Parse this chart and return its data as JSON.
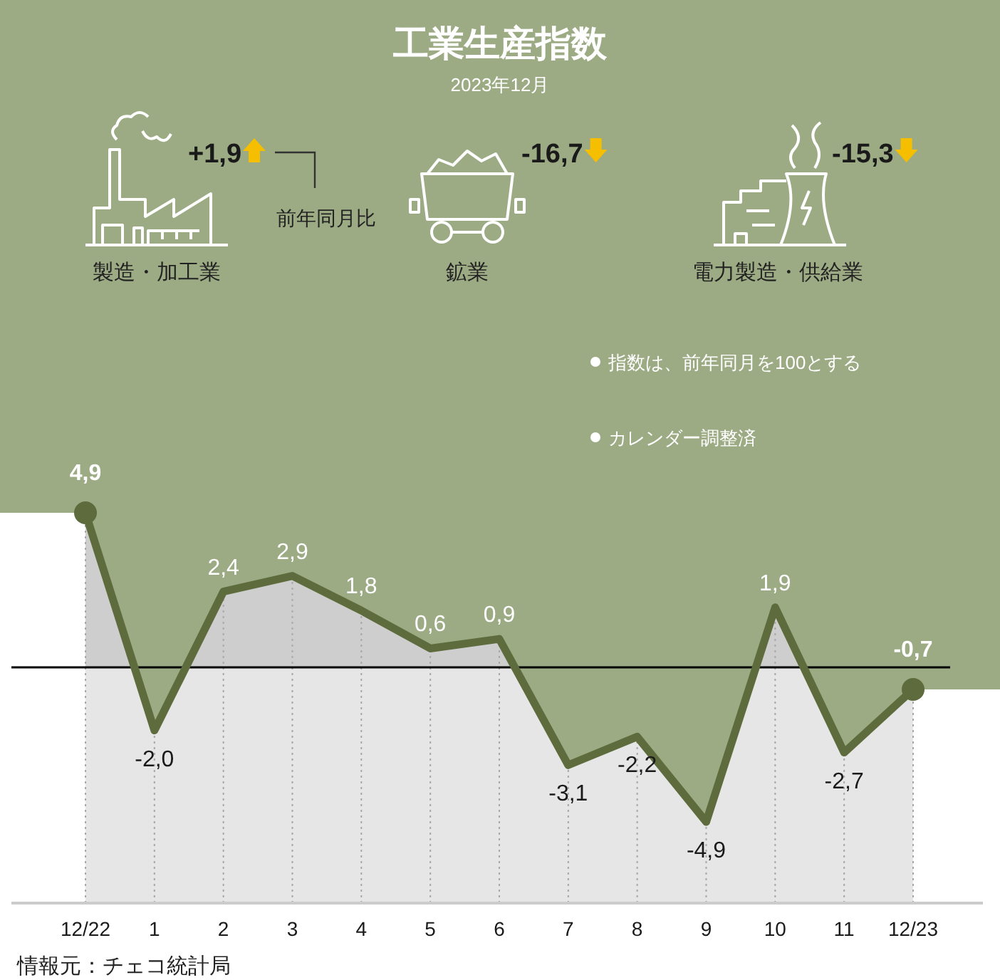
{
  "chart_data": [
    {
      "type": "other",
      "title": "工業生産指数",
      "subtitle": "2023年12月",
      "categories": [
        "製造・加工業",
        "鉱業",
        "電力製造・供給業"
      ],
      "values": [
        1.9,
        -16.7,
        -15.3
      ],
      "value_labels": [
        "+1,9",
        "-16,7",
        "-15,3"
      ],
      "color": "#f5bf00",
      "annotations": [
        "前年同月比",
        "指数は、前年同月を100とする",
        "カレンダー調整済"
      ]
    },
    {
      "type": "area",
      "categories": [
        "12/22",
        "1",
        "2",
        "3",
        "4",
        "5",
        "6",
        "7",
        "8",
        "9",
        "10",
        "11",
        "12/23"
      ],
      "values": [
        4.9,
        -2.0,
        2.4,
        2.9,
        1.8,
        0.6,
        0.9,
        -3.1,
        -2.2,
        -4.9,
        1.9,
        -2.7,
        -0.7
      ],
      "value_labels": [
        "4,9",
        "-2,0",
        "2,4",
        "2,9",
        "1,8",
        "0,6",
        "0,9",
        "-3,1",
        "-2,2",
        "-4,9",
        "1,9",
        "-2,7",
        "-0,7"
      ],
      "color": "#5e6c3d",
      "grid": "x",
      "ref_lines": [
        {
          "axis": "y",
          "value": 0,
          "color": "#000000"
        }
      ],
      "annotations": [
        "情報元：チェコ統計局"
      ]
    }
  ]
}
